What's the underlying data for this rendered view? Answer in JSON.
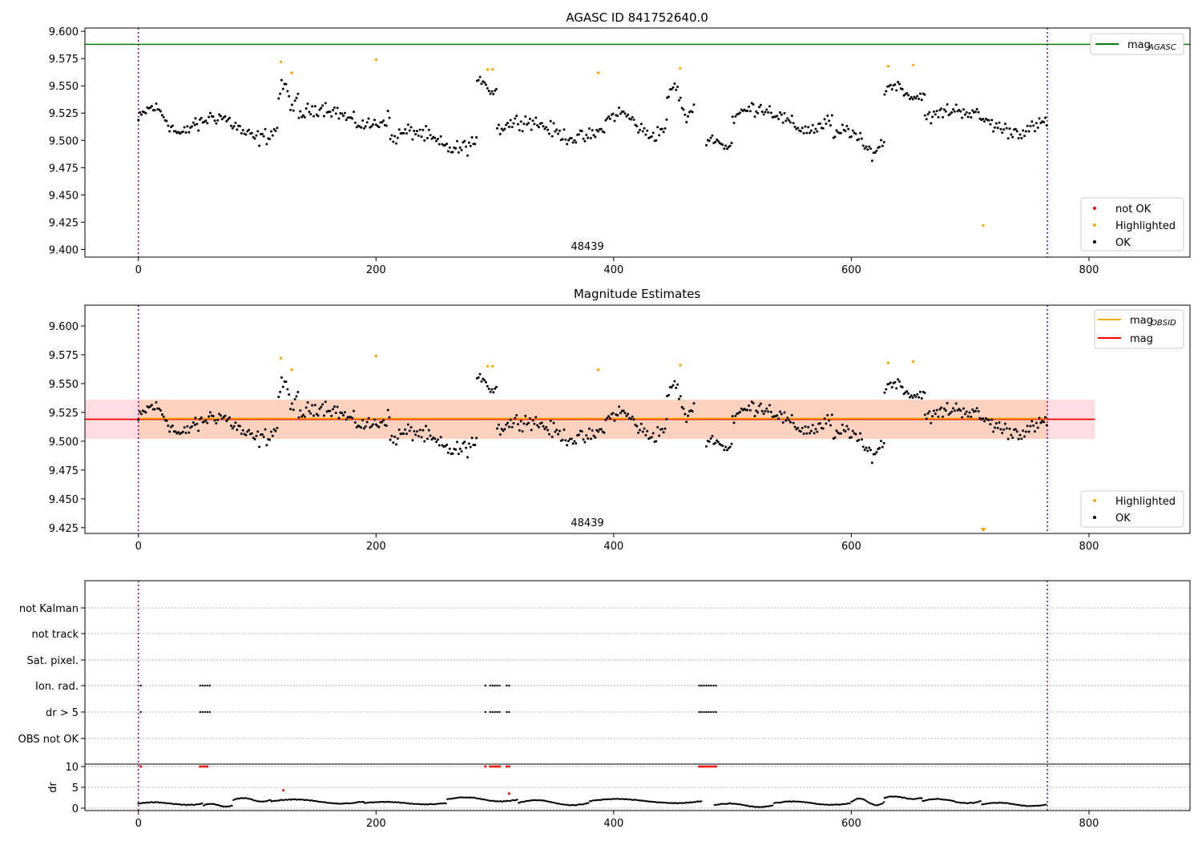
{
  "chart_data": [
    {
      "type": "scatter",
      "title": "AGASC ID 841752640.0",
      "obsid_label": "48439",
      "xlim": [
        -45,
        885
      ],
      "ylim": [
        9.393,
        9.603
      ],
      "xticks": [
        "0",
        "200",
        "400",
        "600",
        "800"
      ],
      "yticks": [
        "9.400",
        "9.425",
        "9.450",
        "9.475",
        "9.500",
        "9.525",
        "9.550",
        "9.575",
        "9.600"
      ],
      "vlines": [
        0,
        765
      ],
      "mag_agasc": 9.588,
      "line_legend": {
        "label": "mag",
        "sub": "AGASC",
        "color": "#008000"
      },
      "point_legend": [
        {
          "label": "not OK",
          "color": "#ff0000"
        },
        {
          "label": "Highlighted",
          "color": "#ffa500"
        },
        {
          "label": "OK",
          "color": "#000000"
        }
      ],
      "highlighted": [
        [
          120,
          9.572
        ],
        [
          129,
          9.562
        ],
        [
          200,
          9.574
        ],
        [
          294,
          9.565
        ],
        [
          298,
          9.565
        ],
        [
          387,
          9.562
        ],
        [
          456,
          9.566
        ],
        [
          631,
          9.568
        ],
        [
          652,
          9.569
        ],
        [
          711,
          9.422
        ]
      ],
      "ok_segments": [
        {
          "x": [
            0,
            48
          ],
          "base": 9.518,
          "amp": 0.012,
          "noise": 0.01
        },
        {
          "x": [
            48,
            118
          ],
          "base": 9.512,
          "amp": 0.01,
          "noise": 0.011
        },
        {
          "x": [
            118,
            135
          ],
          "base": 9.54,
          "amp": 0.01,
          "noise": 0.01
        },
        {
          "x": [
            135,
            212
          ],
          "base": 9.522,
          "amp": 0.008,
          "noise": 0.01
        },
        {
          "x": [
            212,
            285
          ],
          "base": 9.5,
          "amp": 0.008,
          "noise": 0.011
        },
        {
          "x": [
            285,
            302
          ],
          "base": 9.55,
          "amp": 0.006,
          "noise": 0.006
        },
        {
          "x": [
            302,
            392
          ],
          "base": 9.51,
          "amp": 0.008,
          "noise": 0.01
        },
        {
          "x": [
            392,
            445
          ],
          "base": 9.515,
          "amp": 0.01,
          "noise": 0.01
        },
        {
          "x": [
            445,
            468
          ],
          "base": 9.535,
          "amp": 0.015,
          "noise": 0.008
        },
        {
          "x": [
            478,
            500
          ],
          "base": 9.498,
          "amp": 0.004,
          "noise": 0.005
        },
        {
          "x": [
            500,
            585
          ],
          "base": 9.52,
          "amp": 0.01,
          "noise": 0.01
        },
        {
          "x": [
            585,
            628
          ],
          "base": 9.5,
          "amp": 0.01,
          "noise": 0.01
        },
        {
          "x": [
            628,
            662
          ],
          "base": 9.545,
          "amp": 0.006,
          "noise": 0.007
        },
        {
          "x": [
            662,
            765
          ],
          "base": 9.518,
          "amp": 0.01,
          "noise": 0.01
        }
      ]
    },
    {
      "type": "scatter",
      "title": "Magnitude Estimates",
      "obsid_label": "48439",
      "xlim": [
        -45,
        885
      ],
      "ylim": [
        9.42,
        9.618
      ],
      "xticks": [
        "0",
        "200",
        "400",
        "600",
        "800"
      ],
      "yticks": [
        "9.425",
        "9.450",
        "9.475",
        "9.500",
        "9.525",
        "9.550",
        "9.575",
        "9.600"
      ],
      "vlines": [
        0,
        765
      ],
      "mag_obsid": 9.519,
      "mag": 9.519,
      "band_outer": [
        9.502,
        9.536
      ],
      "band_inner": [
        9.502,
        9.536
      ],
      "line_legend": [
        {
          "label": "mag",
          "sub": "OBSID",
          "color": "#ffa500"
        },
        {
          "label": "mag",
          "sub": "",
          "color": "#ff0000"
        }
      ],
      "point_legend": [
        {
          "label": "Highlighted",
          "color": "#ffa500"
        },
        {
          "label": "OK",
          "color": "#000000"
        }
      ],
      "highlighted": [
        [
          120,
          9.572
        ],
        [
          129,
          9.562
        ],
        [
          200,
          9.574
        ],
        [
          294,
          9.565
        ],
        [
          298,
          9.565
        ],
        [
          387,
          9.562
        ],
        [
          456,
          9.566
        ],
        [
          631,
          9.568
        ],
        [
          652,
          9.569
        ]
      ],
      "marker_below": [
        711,
        9.423
      ]
    },
    {
      "type": "scatter",
      "title": "",
      "xlim": [
        -45,
        885
      ],
      "xticks": [
        "0",
        "200",
        "400",
        "600",
        "800"
      ],
      "vlines": [
        0,
        765
      ],
      "flag_rows": [
        "not Kalman",
        "not track",
        "Sat. pixel.",
        "Ion. rad.",
        "dr > 5",
        "OBS not OK"
      ],
      "flag_points": [
        {
          "row": "Ion. rad.",
          "x": [
            2,
            52,
            54,
            56,
            58,
            60,
            292,
            296,
            298,
            300,
            302,
            304,
            310,
            312,
            472,
            474,
            476,
            478,
            480,
            482,
            484,
            486
          ]
        },
        {
          "row": "dr > 5",
          "x": [
            2,
            52,
            54,
            56,
            58,
            60,
            292,
            296,
            298,
            300,
            302,
            304,
            310,
            312,
            472,
            474,
            476,
            478,
            480,
            482,
            484,
            486
          ]
        }
      ],
      "dr_ylabel": "dr",
      "dr_ylim": [
        0,
        10
      ],
      "dr_yticks": [
        "0",
        "5",
        "10"
      ],
      "dr_outliers": [
        [
          2,
          10
        ],
        [
          52,
          10
        ],
        [
          54,
          10
        ],
        [
          56,
          10
        ],
        [
          58,
          10
        ],
        [
          292,
          10
        ],
        [
          296,
          10
        ],
        [
          298,
          10
        ],
        [
          300,
          10
        ],
        [
          302,
          10
        ],
        [
          304,
          10
        ],
        [
          310,
          10
        ],
        [
          312,
          10
        ],
        [
          472,
          10
        ],
        [
          474,
          10
        ],
        [
          476,
          10
        ],
        [
          478,
          10
        ],
        [
          480,
          10
        ],
        [
          482,
          10
        ],
        [
          484,
          10
        ],
        [
          486,
          10
        ],
        [
          122,
          4.3
        ],
        [
          312,
          3.5
        ]
      ],
      "dr_segments": [
        {
          "x": [
            0,
            55
          ],
          "base": 1.1,
          "amp": 0.3
        },
        {
          "x": [
            55,
            80
          ],
          "base": 0.7,
          "amp": 0.3
        },
        {
          "x": [
            80,
            112
          ],
          "base": 2.0,
          "amp": 0.4
        },
        {
          "x": [
            112,
            190
          ],
          "base": 1.6,
          "amp": 0.5
        },
        {
          "x": [
            190,
            260
          ],
          "base": 1.2,
          "amp": 0.3
        },
        {
          "x": [
            260,
            320
          ],
          "base": 2.1,
          "amp": 0.5
        },
        {
          "x": [
            320,
            380
          ],
          "base": 1.3,
          "amp": 0.6
        },
        {
          "x": [
            380,
            475
          ],
          "base": 1.7,
          "amp": 0.5
        },
        {
          "x": [
            485,
            535
          ],
          "base": 0.7,
          "amp": 0.4
        },
        {
          "x": [
            535,
            600
          ],
          "base": 1.2,
          "amp": 0.4
        },
        {
          "x": [
            600,
            628
          ],
          "base": 1.5,
          "amp": 0.8
        },
        {
          "x": [
            628,
            660
          ],
          "base": 2.5,
          "amp": 0.3
        },
        {
          "x": [
            660,
            710
          ],
          "base": 1.7,
          "amp": 0.5
        },
        {
          "x": [
            710,
            765
          ],
          "base": 0.9,
          "amp": 0.4
        }
      ]
    }
  ]
}
